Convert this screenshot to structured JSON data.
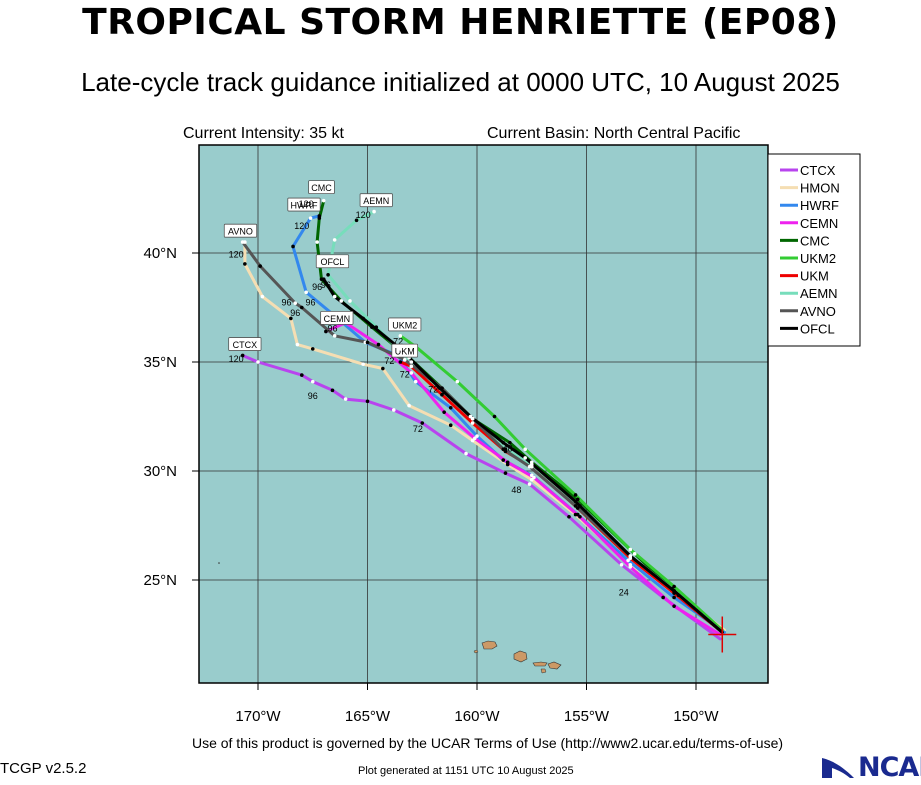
{
  "header": {
    "title": "TROPICAL STORM HENRIETTE (EP08)",
    "subtitle": "Late-cycle track guidance initialized at 0000 UTC, 10 August 2025",
    "current_intensity": "Current Intensity: 35 kt",
    "current_basin": "Current Basin: North Central Pacific"
  },
  "footer": {
    "terms": "Use of this product is governed by the UCAR Terms of Use (http://www2.ucar.edu/terms-of-use)",
    "version": "TCGP v2.5.2",
    "generated": "Plot generated at 1151 UTC   10 August 2025",
    "logo_text": "NCAR"
  },
  "map": {
    "lon_ticks": [
      {
        "lon": -170,
        "label": "170°W"
      },
      {
        "lon": -165,
        "label": "165°W"
      },
      {
        "lon": -160,
        "label": "160°W"
      },
      {
        "lon": -155,
        "label": "155°W"
      },
      {
        "lon": -150,
        "label": "150°W"
      }
    ],
    "lat_ticks": [
      {
        "lat": 40,
        "label": "40°N"
      },
      {
        "lat": 35,
        "label": "35°N"
      },
      {
        "lat": 30,
        "label": "30°N"
      },
      {
        "lat": 25,
        "label": "25°N"
      }
    ],
    "ocean_color": "#99cccc",
    "land_color": "#cc9966",
    "storm_position": {
      "lon": -148.8,
      "lat": 22.5
    }
  },
  "legend": [
    {
      "name": "CTCX",
      "color": "#b844ee"
    },
    {
      "name": "HMON",
      "color": "#f5deb3"
    },
    {
      "name": "HWRF",
      "color": "#3388ee"
    },
    {
      "name": "CEMN",
      "color": "#ee22ee"
    },
    {
      "name": "CMC",
      "color": "#006600"
    },
    {
      "name": "UKM2",
      "color": "#33cc33"
    },
    {
      "name": "UKM",
      "color": "#ee0000"
    },
    {
      "name": "AEMN",
      "color": "#77ddbb"
    },
    {
      "name": "AVNO",
      "color": "#555555"
    },
    {
      "name": "OFCL",
      "color": "#000000"
    }
  ],
  "tracks": [
    {
      "name": "CTCX",
      "color": "#b844ee",
      "points": [
        [
          -148.9,
          22.3
        ],
        [
          -151.5,
          24.2
        ],
        [
          -153.4,
          25.7
        ],
        [
          -155.8,
          27.9
        ],
        [
          -157.6,
          29.4
        ],
        [
          -158.7,
          29.9
        ],
        [
          -160.5,
          30.8
        ],
        [
          -162.5,
          32.2
        ],
        [
          -163.8,
          32.8
        ],
        [
          -165.0,
          33.2
        ],
        [
          -166.0,
          33.3
        ],
        [
          -166.6,
          33.7
        ],
        [
          -167.5,
          34.1
        ],
        [
          -168.0,
          34.4
        ],
        [
          -170.0,
          35.0
        ],
        [
          -170.7,
          35.3
        ]
      ],
      "labels": [
        {
          "text": "24",
          "lon": -153.3,
          "lat": 24.3
        },
        {
          "text": "48",
          "lon": -158.2,
          "lat": 29.0
        },
        {
          "text": "72",
          "lon": -162.7,
          "lat": 31.8
        },
        {
          "text": "96",
          "lon": -167.5,
          "lat": 33.3
        },
        {
          "text": "120",
          "lon": -171.0,
          "lat": 35.0
        }
      ],
      "tag": {
        "text": "CTCX",
        "lon": -170.6,
        "lat": 35.8
      }
    },
    {
      "name": "HMON",
      "color": "#f5deb3",
      "points": [
        [
          -148.7,
          22.7
        ],
        [
          -150.8,
          24.3
        ],
        [
          -153.0,
          25.7
        ],
        [
          -155.5,
          28.0
        ],
        [
          -157.5,
          29.6
        ],
        [
          -158.6,
          30.3
        ],
        [
          -160.2,
          31.4
        ],
        [
          -161.2,
          32.1
        ],
        [
          -163.1,
          33.0
        ],
        [
          -164.3,
          34.7
        ],
        [
          -165.2,
          34.9
        ],
        [
          -167.5,
          35.6
        ],
        [
          -168.2,
          35.8
        ],
        [
          -168.5,
          37.0
        ],
        [
          -169.8,
          38.0
        ],
        [
          -170.6,
          39.5
        ],
        [
          -170.6,
          40.5
        ]
      ],
      "labels": [
        {
          "text": "96",
          "lon": -168.3,
          "lat": 37.1
        }
      ]
    },
    {
      "name": "HWRF",
      "color": "#3388ee",
      "points": [
        [
          -148.7,
          22.6
        ],
        [
          -151.0,
          24.2
        ],
        [
          -153.1,
          25.9
        ],
        [
          -155.4,
          28.0
        ],
        [
          -157.5,
          29.8
        ],
        [
          -158.8,
          30.5
        ],
        [
          -160.0,
          31.6
        ],
        [
          -161.2,
          32.9
        ],
        [
          -162.8,
          34.1
        ],
        [
          -163.6,
          35.3
        ],
        [
          -165.1,
          35.9
        ],
        [
          -166.6,
          37.2
        ],
        [
          -167.8,
          38.2
        ],
        [
          -168.4,
          40.3
        ],
        [
          -167.6,
          41.6
        ],
        [
          -167.2,
          41.7
        ]
      ],
      "labels": [
        {
          "text": "96",
          "lon": -167.6,
          "lat": 37.6
        },
        {
          "text": "120",
          "lon": -168.0,
          "lat": 41.1
        }
      ],
      "tag": {
        "text": "HWRF",
        "lon": -167.9,
        "lat": 42.2
      }
    },
    {
      "name": "CEMN",
      "color": "#ee22ee",
      "points": [
        [
          -148.9,
          22.5
        ],
        [
          -151.0,
          23.8
        ],
        [
          -153.0,
          25.6
        ],
        [
          -155.3,
          27.9
        ],
        [
          -157.4,
          29.7
        ],
        [
          -158.6,
          30.4
        ],
        [
          -160.1,
          31.5
        ],
        [
          -161.5,
          32.7
        ],
        [
          -163.0,
          34.5
        ],
        [
          -164.5,
          35.8
        ],
        [
          -166.0,
          36.8
        ],
        [
          -166.9,
          36.4
        ]
      ],
      "labels": [
        {
          "text": "96",
          "lon": -166.6,
          "lat": 36.4
        }
      ],
      "tag": {
        "text": "CEMN",
        "lon": -166.4,
        "lat": 37.0
      }
    },
    {
      "name": "CMC",
      "color": "#006600",
      "points": [
        [
          -148.8,
          22.6
        ],
        [
          -151.0,
          24.5
        ],
        [
          -152.8,
          26.2
        ],
        [
          -155.4,
          28.7
        ],
        [
          -157.5,
          30.4
        ],
        [
          -158.5,
          31.3
        ],
        [
          -160.2,
          32.4
        ],
        [
          -161.6,
          33.8
        ],
        [
          -163.1,
          35.2
        ],
        [
          -164.8,
          36.6
        ],
        [
          -166.2,
          37.8
        ],
        [
          -167.1,
          38.8
        ],
        [
          -167.3,
          40.5
        ],
        [
          -167.2,
          41.6
        ],
        [
          -167.0,
          42.4
        ]
      ],
      "labels": [
        {
          "text": "96",
          "lon": -166.9,
          "lat": 38.4
        },
        {
          "text": "120",
          "lon": -167.8,
          "lat": 42.1
        }
      ],
      "tag": {
        "text": "CMC",
        "lon": -167.1,
        "lat": 43.0
      }
    },
    {
      "name": "UKM2",
      "color": "#33cc33",
      "points": [
        [
          -148.8,
          22.7
        ],
        [
          -151.0,
          24.7
        ],
        [
          -153.0,
          26.4
        ],
        [
          -155.5,
          28.9
        ],
        [
          -157.8,
          31.0
        ],
        [
          -159.2,
          32.5
        ],
        [
          -160.9,
          34.1
        ],
        [
          -162.8,
          35.7
        ],
        [
          -163.5,
          36.2
        ]
      ],
      "labels": [
        {
          "text": "72",
          "lon": -163.6,
          "lat": 35.8
        }
      ],
      "tag": {
        "text": "UKM2",
        "lon": -163.3,
        "lat": 36.7
      }
    },
    {
      "name": "UKM",
      "color": "#ee0000",
      "points": [
        [
          -148.8,
          22.6
        ],
        [
          -151.0,
          24.4
        ],
        [
          -153.0,
          26.0
        ],
        [
          -155.4,
          28.3
        ],
        [
          -157.5,
          30.2
        ],
        [
          -158.7,
          30.9
        ],
        [
          -160.2,
          32.2
        ],
        [
          -161.6,
          33.5
        ],
        [
          -163.0,
          34.8
        ],
        [
          -163.5,
          35.0
        ]
      ],
      "labels": [
        {
          "text": "72",
          "lon": -163.3,
          "lat": 34.3
        }
      ],
      "tag": {
        "text": "UKM",
        "lon": -163.3,
        "lat": 35.5
      }
    },
    {
      "name": "AEMN",
      "color": "#77ddbb",
      "points": [
        [
          -148.8,
          22.6
        ],
        [
          -151.1,
          24.6
        ],
        [
          -153.0,
          26.1
        ],
        [
          -155.3,
          28.4
        ],
        [
          -157.5,
          30.3
        ],
        [
          -158.7,
          31.0
        ],
        [
          -160.2,
          32.4
        ],
        [
          -161.5,
          33.6
        ],
        [
          -163.0,
          35.0
        ],
        [
          -164.6,
          36.6
        ],
        [
          -165.8,
          37.8
        ],
        [
          -166.8,
          39.0
        ],
        [
          -166.5,
          40.6
        ],
        [
          -165.5,
          41.5
        ],
        [
          -164.7,
          41.9
        ]
      ],
      "labels": [
        {
          "text": "120",
          "lon": -165.2,
          "lat": 41.6
        }
      ],
      "tag": {
        "text": "AEMN",
        "lon": -164.6,
        "lat": 42.4
      }
    },
    {
      "name": "AVNO",
      "color": "#555555",
      "points": [
        [
          -148.8,
          22.6
        ],
        [
          -151.0,
          24.5
        ],
        [
          -153.0,
          26.1
        ],
        [
          -155.5,
          28.4
        ],
        [
          -157.6,
          30.2
        ],
        [
          -158.8,
          31.0
        ],
        [
          -160.2,
          32.4
        ],
        [
          -161.6,
          33.8
        ],
        [
          -163.3,
          35.1
        ],
        [
          -165.0,
          35.9
        ],
        [
          -166.5,
          36.2
        ],
        [
          -168.0,
          37.5
        ],
        [
          -168.3,
          37.7
        ],
        [
          -169.9,
          39.4
        ],
        [
          -170.7,
          40.5
        ]
      ],
      "labels": [
        {
          "text": "72",
          "lon": -162.0,
          "lat": 33.6
        },
        {
          "text": "96",
          "lon": -168.7,
          "lat": 37.6
        },
        {
          "text": "120",
          "lon": -171.0,
          "lat": 39.8
        }
      ],
      "tag": {
        "text": "AVNO",
        "lon": -170.8,
        "lat": 41.0
      }
    },
    {
      "name": "OFCL",
      "color": "#000000",
      "points": [
        [
          -148.8,
          22.6
        ],
        [
          -151.0,
          24.5
        ],
        [
          -153.0,
          26.1
        ],
        [
          -155.5,
          28.6
        ],
        [
          -157.8,
          30.6
        ],
        [
          -158.8,
          31.3
        ],
        [
          -160.3,
          32.5
        ],
        [
          -161.7,
          33.8
        ],
        [
          -163.5,
          35.6
        ],
        [
          -165.2,
          37.0
        ],
        [
          -166.5,
          38.0
        ],
        [
          -167.0,
          38.8
        ]
      ],
      "labels": [
        {
          "text": "72",
          "lon": -164.0,
          "lat": 34.9
        },
        {
          "text": "48",
          "lon": -158.6,
          "lat": 30.9
        },
        {
          "text": "96",
          "lon": -167.3,
          "lat": 38.3
        }
      ],
      "tag": {
        "text": "OFCL",
        "lon": -166.6,
        "lat": 39.6
      }
    }
  ]
}
